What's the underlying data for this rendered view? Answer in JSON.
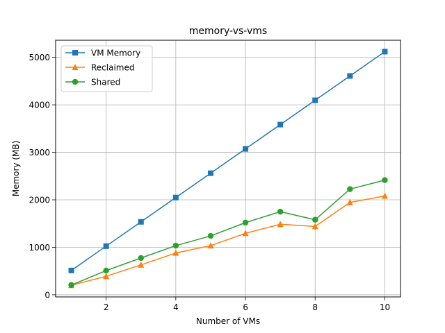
{
  "chart_data": {
    "type": "line",
    "title": "memory-vs-vms",
    "xlabel": "Number of VMs",
    "ylabel": "Memory (MB)",
    "xlim": [
      0.55,
      10.45
    ],
    "ylim": [
      -45,
      5360
    ],
    "xticks": [
      2,
      4,
      6,
      8,
      10
    ],
    "yticks": [
      0,
      1000,
      2000,
      3000,
      4000,
      5000
    ],
    "grid": true,
    "legend_position": "upper-left",
    "x": [
      1,
      2,
      3,
      4,
      5,
      6,
      7,
      8,
      9,
      10
    ],
    "series": [
      {
        "name": "VM Memory",
        "color": "#1f77b4",
        "marker": "square",
        "values": [
          512,
          1024,
          1536,
          2048,
          2560,
          3072,
          3584,
          4096,
          4608,
          5120
        ]
      },
      {
        "name": "Reclaimed",
        "color": "#ff7f0e",
        "marker": "triangle",
        "values": [
          200,
          390,
          630,
          880,
          1035,
          1295,
          1485,
          1440,
          1945,
          2080
        ]
      },
      {
        "name": "Shared",
        "color": "#2ca02c",
        "marker": "circle",
        "values": [
          205,
          510,
          775,
          1035,
          1240,
          1520,
          1750,
          1580,
          2225,
          2415
        ]
      }
    ]
  }
}
